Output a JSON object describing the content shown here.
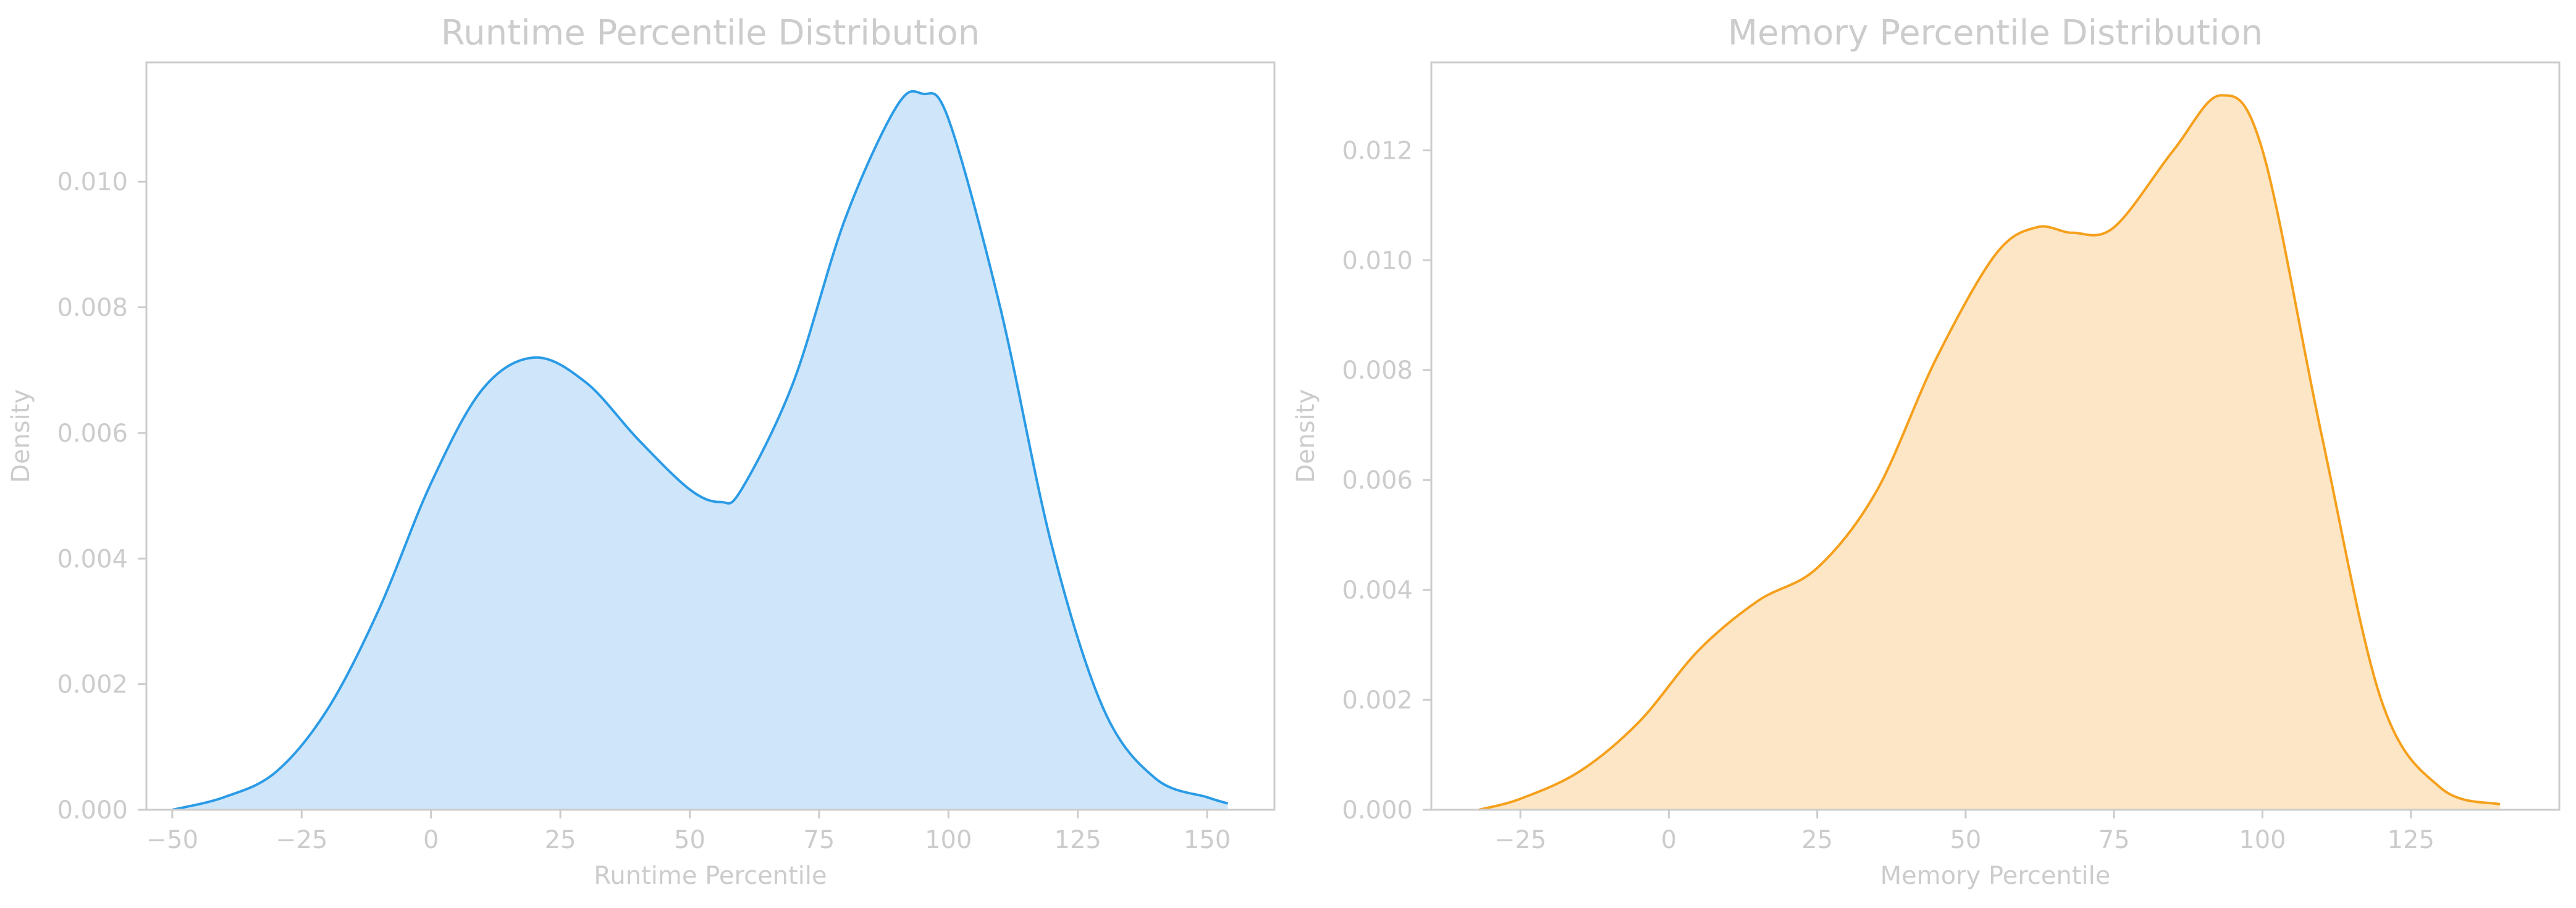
{
  "chart_data": [
    {
      "type": "area",
      "title": "Runtime Percentile Distribution",
      "xlabel": "Runtime Percentile",
      "ylabel": "Density",
      "xlim": [
        -55,
        163
      ],
      "ylim": [
        0,
        0.0119
      ],
      "xticks": [
        -50,
        -25,
        0,
        25,
        50,
        75,
        100,
        125,
        150
      ],
      "yticks": [
        0.0,
        0.002,
        0.004,
        0.006,
        0.008,
        0.01
      ],
      "xtick_labels": [
        "−50",
        "−25",
        "0",
        "25",
        "50",
        "75",
        "100",
        "125",
        "150"
      ],
      "ytick_labels": [
        "0.000",
        "0.002",
        "0.004",
        "0.006",
        "0.008",
        "0.010"
      ],
      "grid": false,
      "color": "#2b9be6",
      "fill_color": "#cfe6fa",
      "series": [
        {
          "x": [
            -50,
            -40,
            -30,
            -20,
            -10,
            0,
            10,
            20,
            30,
            40,
            50,
            56,
            60,
            70,
            80,
            90,
            95,
            100,
            110,
            120,
            130,
            140,
            150,
            154
          ],
          "values": [
            0.0,
            0.0002,
            0.0006,
            0.0016,
            0.0032,
            0.0052,
            0.0067,
            0.0072,
            0.0068,
            0.0059,
            0.0051,
            0.0049,
            0.0051,
            0.0068,
            0.0094,
            0.0112,
            0.0114,
            0.011,
            0.008,
            0.0042,
            0.0016,
            0.0005,
            0.0002,
            0.0001
          ]
        }
      ]
    },
    {
      "type": "area",
      "title": "Memory Percentile Distribution",
      "xlabel": "Memory Percentile",
      "ylabel": "Density",
      "xlim": [
        -40,
        150
      ],
      "ylim": [
        0,
        0.0136
      ],
      "xticks": [
        -25,
        0,
        25,
        50,
        75,
        100,
        125
      ],
      "yticks": [
        0.0,
        0.002,
        0.004,
        0.006,
        0.008,
        0.01,
        0.012
      ],
      "xtick_labels": [
        "−25",
        "0",
        "25",
        "50",
        "75",
        "100",
        "125"
      ],
      "ytick_labels": [
        "0.000",
        "0.002",
        "0.004",
        "0.006",
        "0.008",
        "0.010",
        "0.012"
      ],
      "grid": false,
      "color": "#f5a01c",
      "fill_color": "#fde6c6",
      "series": [
        {
          "x": [
            -32,
            -25,
            -15,
            -5,
            5,
            15,
            25,
            35,
            45,
            55,
            62,
            68,
            75,
            85,
            93,
            100,
            110,
            120,
            130,
            140
          ],
          "values": [
            0.0,
            0.0002,
            0.0007,
            0.0016,
            0.0029,
            0.0038,
            0.0044,
            0.0058,
            0.0082,
            0.0101,
            0.0106,
            0.0105,
            0.0106,
            0.012,
            0.013,
            0.012,
            0.0068,
            0.002,
            0.0004,
            0.0001
          ]
        }
      ]
    }
  ]
}
